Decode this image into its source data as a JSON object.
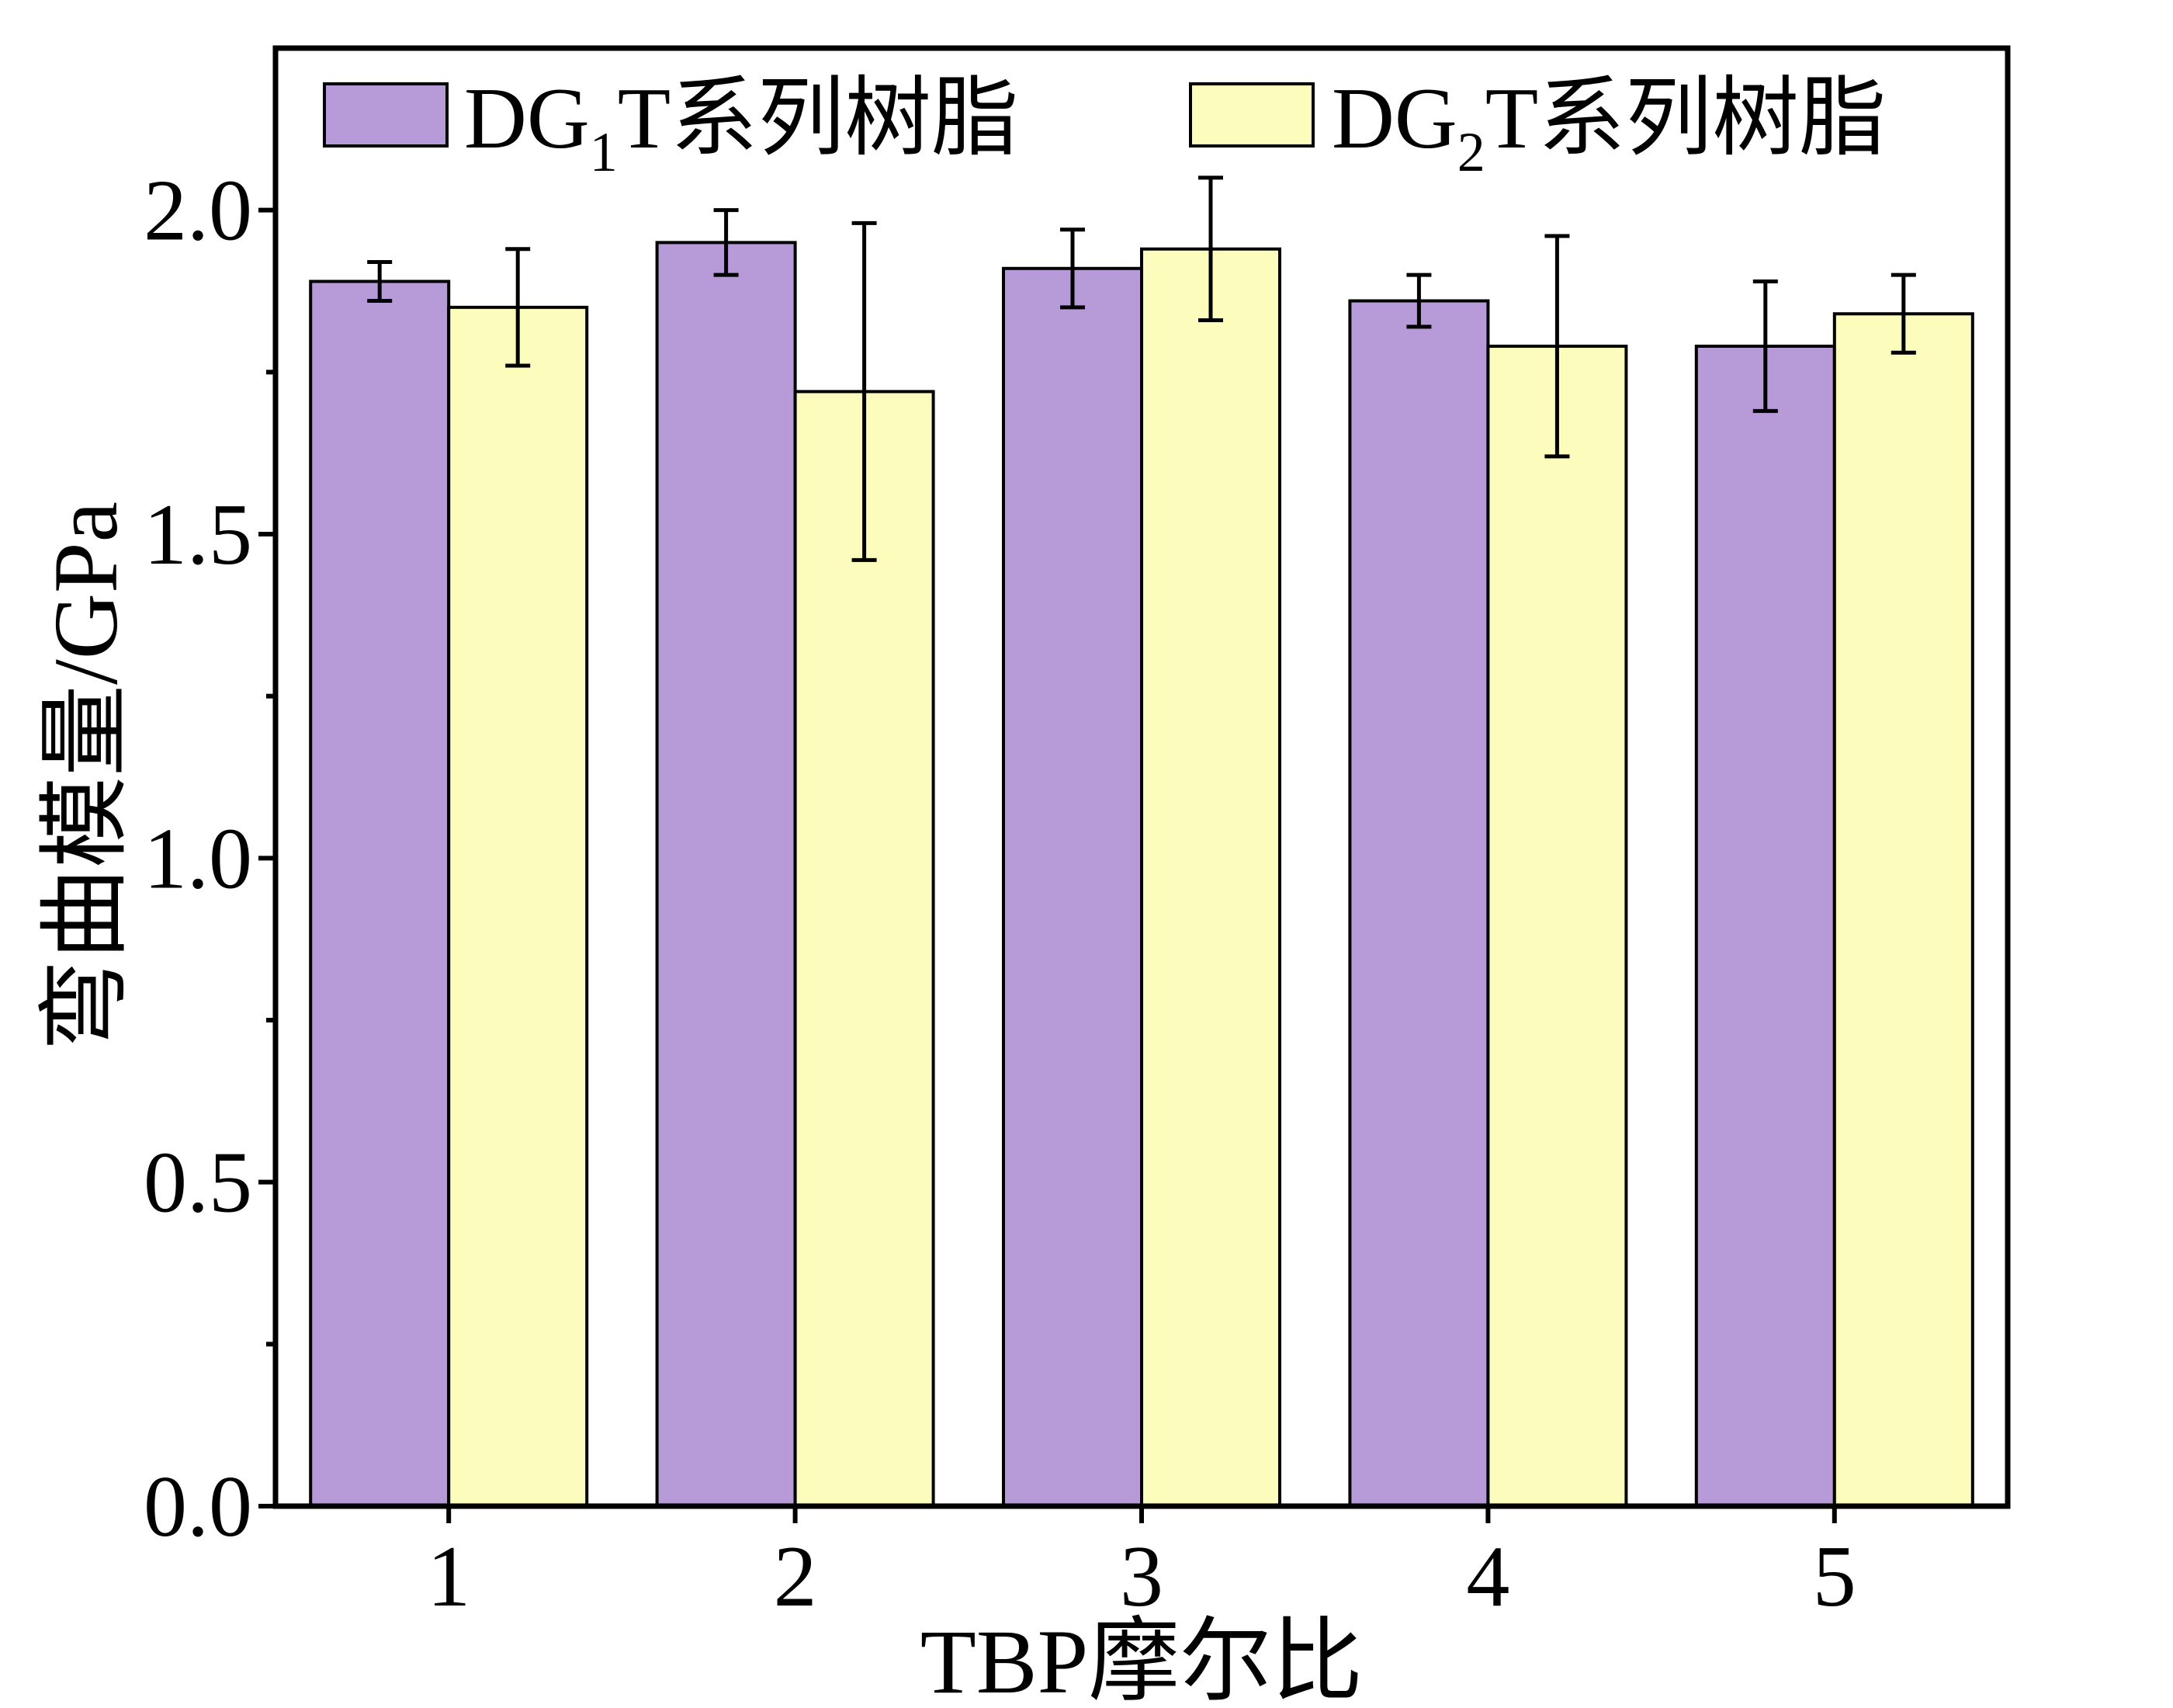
{
  "chart_data": {
    "type": "bar",
    "title": "",
    "xlabel": "TBP摩尔比",
    "ylabel": "弯曲模量/GPa",
    "categories": [
      "1",
      "2",
      "3",
      "4",
      "5"
    ],
    "ylim": [
      0,
      2.25
    ],
    "yticks": [
      0.0,
      0.5,
      1.0,
      1.5,
      2.0
    ],
    "ytick_labels": [
      "0.0",
      "0.5",
      "1.0",
      "1.5",
      "2.0"
    ],
    "grid": false,
    "legend_position": "top",
    "series": [
      {
        "legend_main": "DG",
        "legend_sub": "1",
        "legend_rest": "T系列树脂",
        "color": "#b79ad8",
        "values": [
          1.89,
          1.95,
          1.91,
          1.86,
          1.79
        ],
        "errors": [
          0.03,
          0.05,
          0.06,
          0.04,
          0.1
        ]
      },
      {
        "legend_main": "DG",
        "legend_sub": "2",
        "legend_rest": "T系列树脂",
        "color": "#fcfcbc",
        "values": [
          1.85,
          1.72,
          1.94,
          1.79,
          1.84
        ],
        "errors": [
          0.09,
          0.26,
          0.11,
          0.17,
          0.06
        ]
      }
    ]
  }
}
